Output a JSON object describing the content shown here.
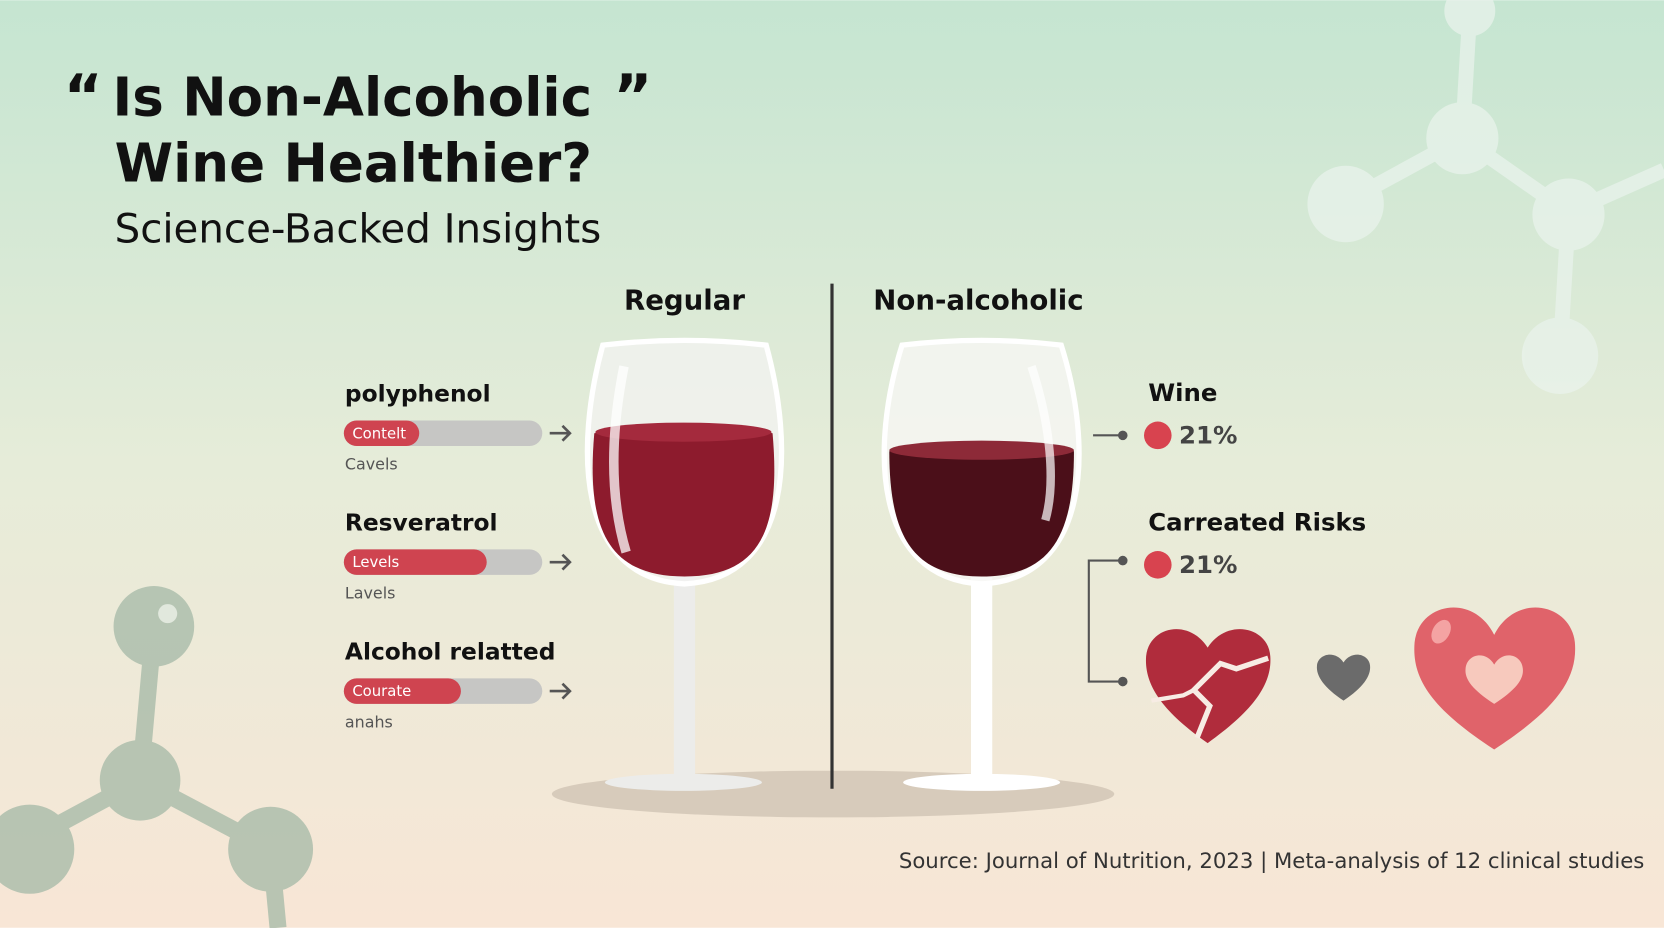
{
  "header": {
    "quote_open": "“",
    "title_line1": "Is Non-Alcoholic",
    "quote_close": "”",
    "title_line2": "Wine Healthier?",
    "subtitle": "Science-Backed Insights"
  },
  "columns": {
    "left": "Regular",
    "right": "Non-alcoholic"
  },
  "metrics": [
    {
      "name": "polyphenol",
      "bar_label": "Contelt",
      "sublabel": "Cavels",
      "level": 38
    },
    {
      "name": "Resveratrol",
      "bar_label": "Levels",
      "sublabel": "Lavels",
      "level": 72
    },
    {
      "name": "Alcohol relatted",
      "bar_label": "Courate",
      "sublabel": "anahs",
      "level": 59
    }
  ],
  "stats": [
    {
      "label": "Wine",
      "value": "21%"
    },
    {
      "label": "Carreated Risks",
      "value": "21%"
    }
  ],
  "source": "Source: Journal of Nutrition, 2023 | Meta-analysis of 12 clinical studies"
}
